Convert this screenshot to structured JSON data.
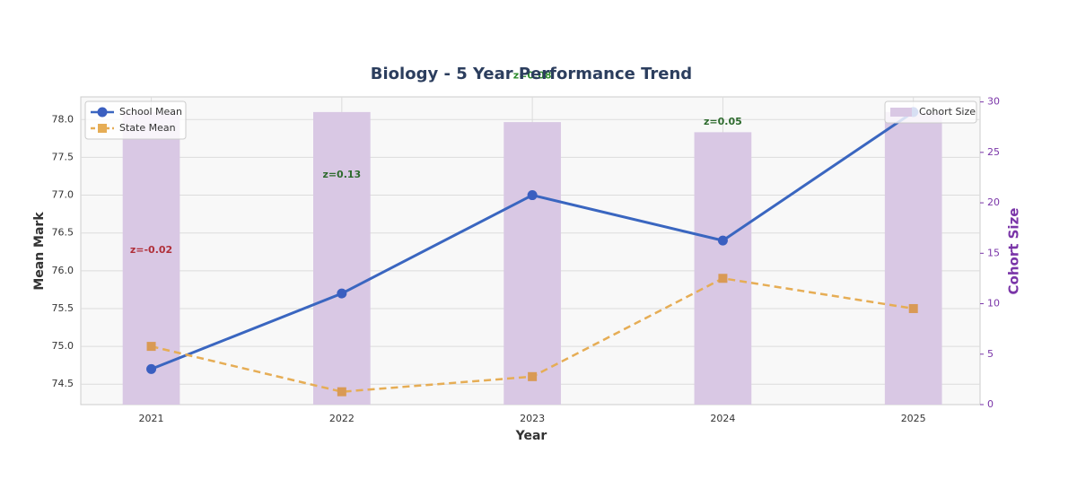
{
  "chart_data": {
    "type": "line",
    "title": "Biology - 5 Year Performance Trend",
    "xlabel": "Year",
    "ylabel": "Mean Mark",
    "y2label": "Cohort Size",
    "x": [
      2021,
      2022,
      2023,
      2024,
      2025
    ],
    "xlim": [
      2020.63,
      2025.35
    ],
    "xticks": [
      2021,
      2022,
      2023,
      2024,
      2025
    ],
    "ylim": [
      74.23,
      78.3
    ],
    "yticks": [
      {
        "value": 74.5,
        "label": "74.5"
      },
      {
        "value": 75,
        "label": "75.0"
      },
      {
        "value": 75.5,
        "label": "75.5"
      },
      {
        "value": 76,
        "label": "76.0"
      },
      {
        "value": 76.5,
        "label": "76.5"
      },
      {
        "value": 77,
        "label": "77.0"
      },
      {
        "value": 77.5,
        "label": "77.5"
      },
      {
        "value": 78,
        "label": "78.0"
      }
    ],
    "y2lim": [
      0,
      30.5
    ],
    "y2ticks": [
      0,
      5,
      10,
      15,
      20,
      25,
      30
    ],
    "grid": true,
    "series": [
      {
        "name": "Cohort Size",
        "type": "bar",
        "axis": "y2",
        "color": "#d9c8e4",
        "values": [
          29,
          29,
          28,
          27,
          29
        ],
        "legend": "upper right"
      },
      {
        "name": "School Mean",
        "type": "line",
        "color": "#3a66c0",
        "values": [
          74.7,
          75.7,
          77.0,
          76.4,
          78.1
        ],
        "marker": "circle",
        "legend": "upper left"
      },
      {
        "name": "State Mean",
        "type": "line",
        "color": "#e6ad55",
        "values": [
          75.0,
          74.4,
          74.6,
          75.9,
          75.5
        ],
        "marker": "square",
        "dashed": true,
        "legend": "upper left"
      }
    ],
    "annotations": [
      {
        "text": "z=-0.02",
        "x": 2021,
        "y": 76.27,
        "color": "#b0303a"
      },
      {
        "text": "z=0.13",
        "x": 2022,
        "y": 77.27,
        "color": "#2e6b2e"
      },
      {
        "text": "z=0.08",
        "x": 2023,
        "y": 78.58,
        "color": "#2e8b2e"
      },
      {
        "text": "z=0.05",
        "x": 2024,
        "y": 77.97,
        "color": "#2e6b2e"
      }
    ]
  }
}
